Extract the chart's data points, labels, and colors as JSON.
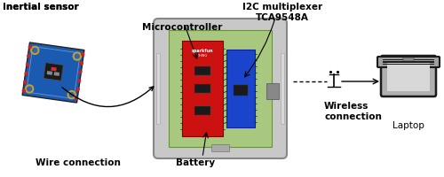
{
  "labels": {
    "inertial_sensor": "Inertial sensor",
    "microcontroller": "Microcontroller",
    "i2c_multiplexer": "I2C multiplexer\nTCA9548A",
    "wire_connection": "Wire connection",
    "wireless_connection": "Wireless\nconnection",
    "battery": "Battery",
    "laptop": "Laptop"
  },
  "bg_color": "#ffffff",
  "text_color": "#000000",
  "label_fontsize": 7.5
}
